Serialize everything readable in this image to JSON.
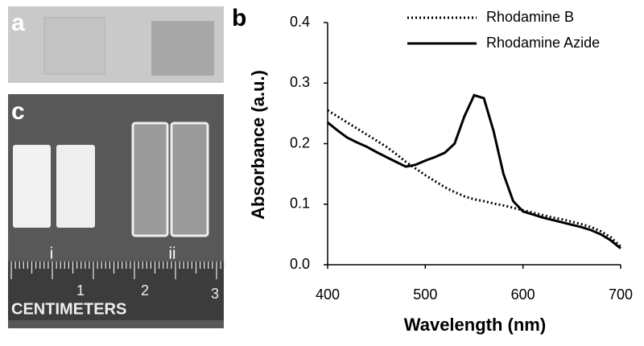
{
  "panel_labels": [
    "a",
    "b",
    "c"
  ],
  "photo": {
    "sample_labels": [
      "i",
      "ii"
    ],
    "ruler_unit": "CENTIMETERS",
    "ruler_numbers": [
      "1",
      "2",
      "3"
    ]
  },
  "chart_data": {
    "type": "line",
    "x_label": "Wavelength (nm)",
    "y_label": "Absorbance (a.u.)",
    "x": [
      400,
      410,
      420,
      430,
      440,
      450,
      460,
      470,
      480,
      490,
      500,
      510,
      520,
      530,
      540,
      550,
      560,
      570,
      580,
      590,
      600,
      610,
      620,
      630,
      640,
      650,
      660,
      670,
      680,
      690,
      700
    ],
    "series": [
      {
        "name": "Rhodamine B",
        "color": "#000000",
        "line_style": "dotted",
        "values": [
          0.255,
          0.245,
          0.235,
          0.225,
          0.215,
          0.205,
          0.195,
          0.183,
          0.17,
          0.159,
          0.148,
          0.138,
          0.128,
          0.12,
          0.113,
          0.108,
          0.105,
          0.101,
          0.098,
          0.094,
          0.09,
          0.086,
          0.082,
          0.078,
          0.075,
          0.071,
          0.067,
          0.062,
          0.055,
          0.045,
          0.03
        ]
      },
      {
        "name": "Rhodamine Azide",
        "color": "#000000",
        "line_style": "solid",
        "values": [
          0.235,
          0.222,
          0.21,
          0.202,
          0.195,
          0.186,
          0.178,
          0.17,
          0.162,
          0.165,
          0.172,
          0.178,
          0.185,
          0.2,
          0.245,
          0.28,
          0.275,
          0.22,
          0.15,
          0.105,
          0.088,
          0.083,
          0.078,
          0.074,
          0.07,
          0.066,
          0.062,
          0.057,
          0.05,
          0.04,
          0.027
        ]
      }
    ],
    "xlim": [
      400,
      700
    ],
    "xticks": [
      400,
      500,
      600,
      700
    ],
    "ylim": [
      0,
      0.4
    ],
    "yticks": [
      {
        "value": 0,
        "label": "0.0"
      },
      0.1,
      0.2,
      0.3,
      0.4
    ],
    "legend": "upper right"
  }
}
